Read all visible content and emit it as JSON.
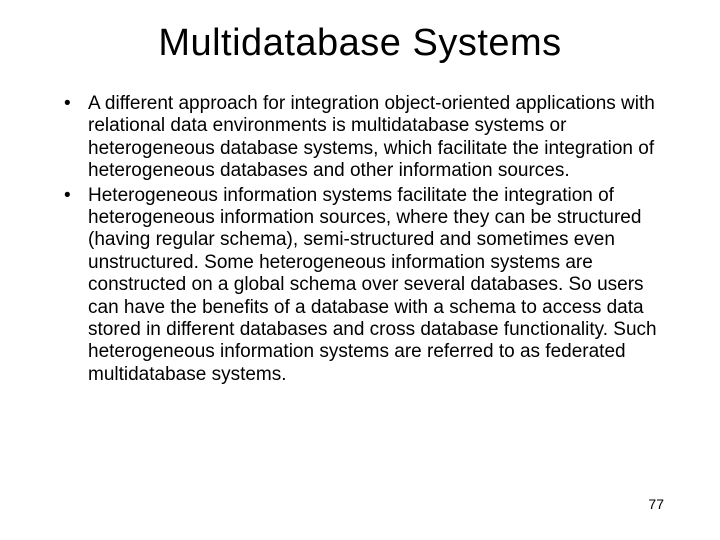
{
  "slide": {
    "title": "Multidatabase Systems",
    "bullets": [
      "A different approach for integration object-oriented applications with relational data environments is multidatabase systems or heterogeneous database systems, which facilitate the integration of heterogeneous databases and other information sources.",
      "Heterogeneous information systems facilitate the integration of heterogeneous information sources, where they can be structured (having regular schema), semi-structured and sometimes even unstructured.  Some heterogeneous information systems are constructed on a global schema over several databases.  So users can have the benefits of a database with a schema to access data stored in different databases and cross database functionality.  Such heterogeneous information systems are referred to as federated multidatabase systems."
    ],
    "page_number": "77"
  },
  "style": {
    "background_color": "#ffffff",
    "text_color": "#000000",
    "title_fontsize": 38,
    "body_fontsize": 19,
    "page_num_fontsize": 14,
    "font_family": "Arial"
  }
}
